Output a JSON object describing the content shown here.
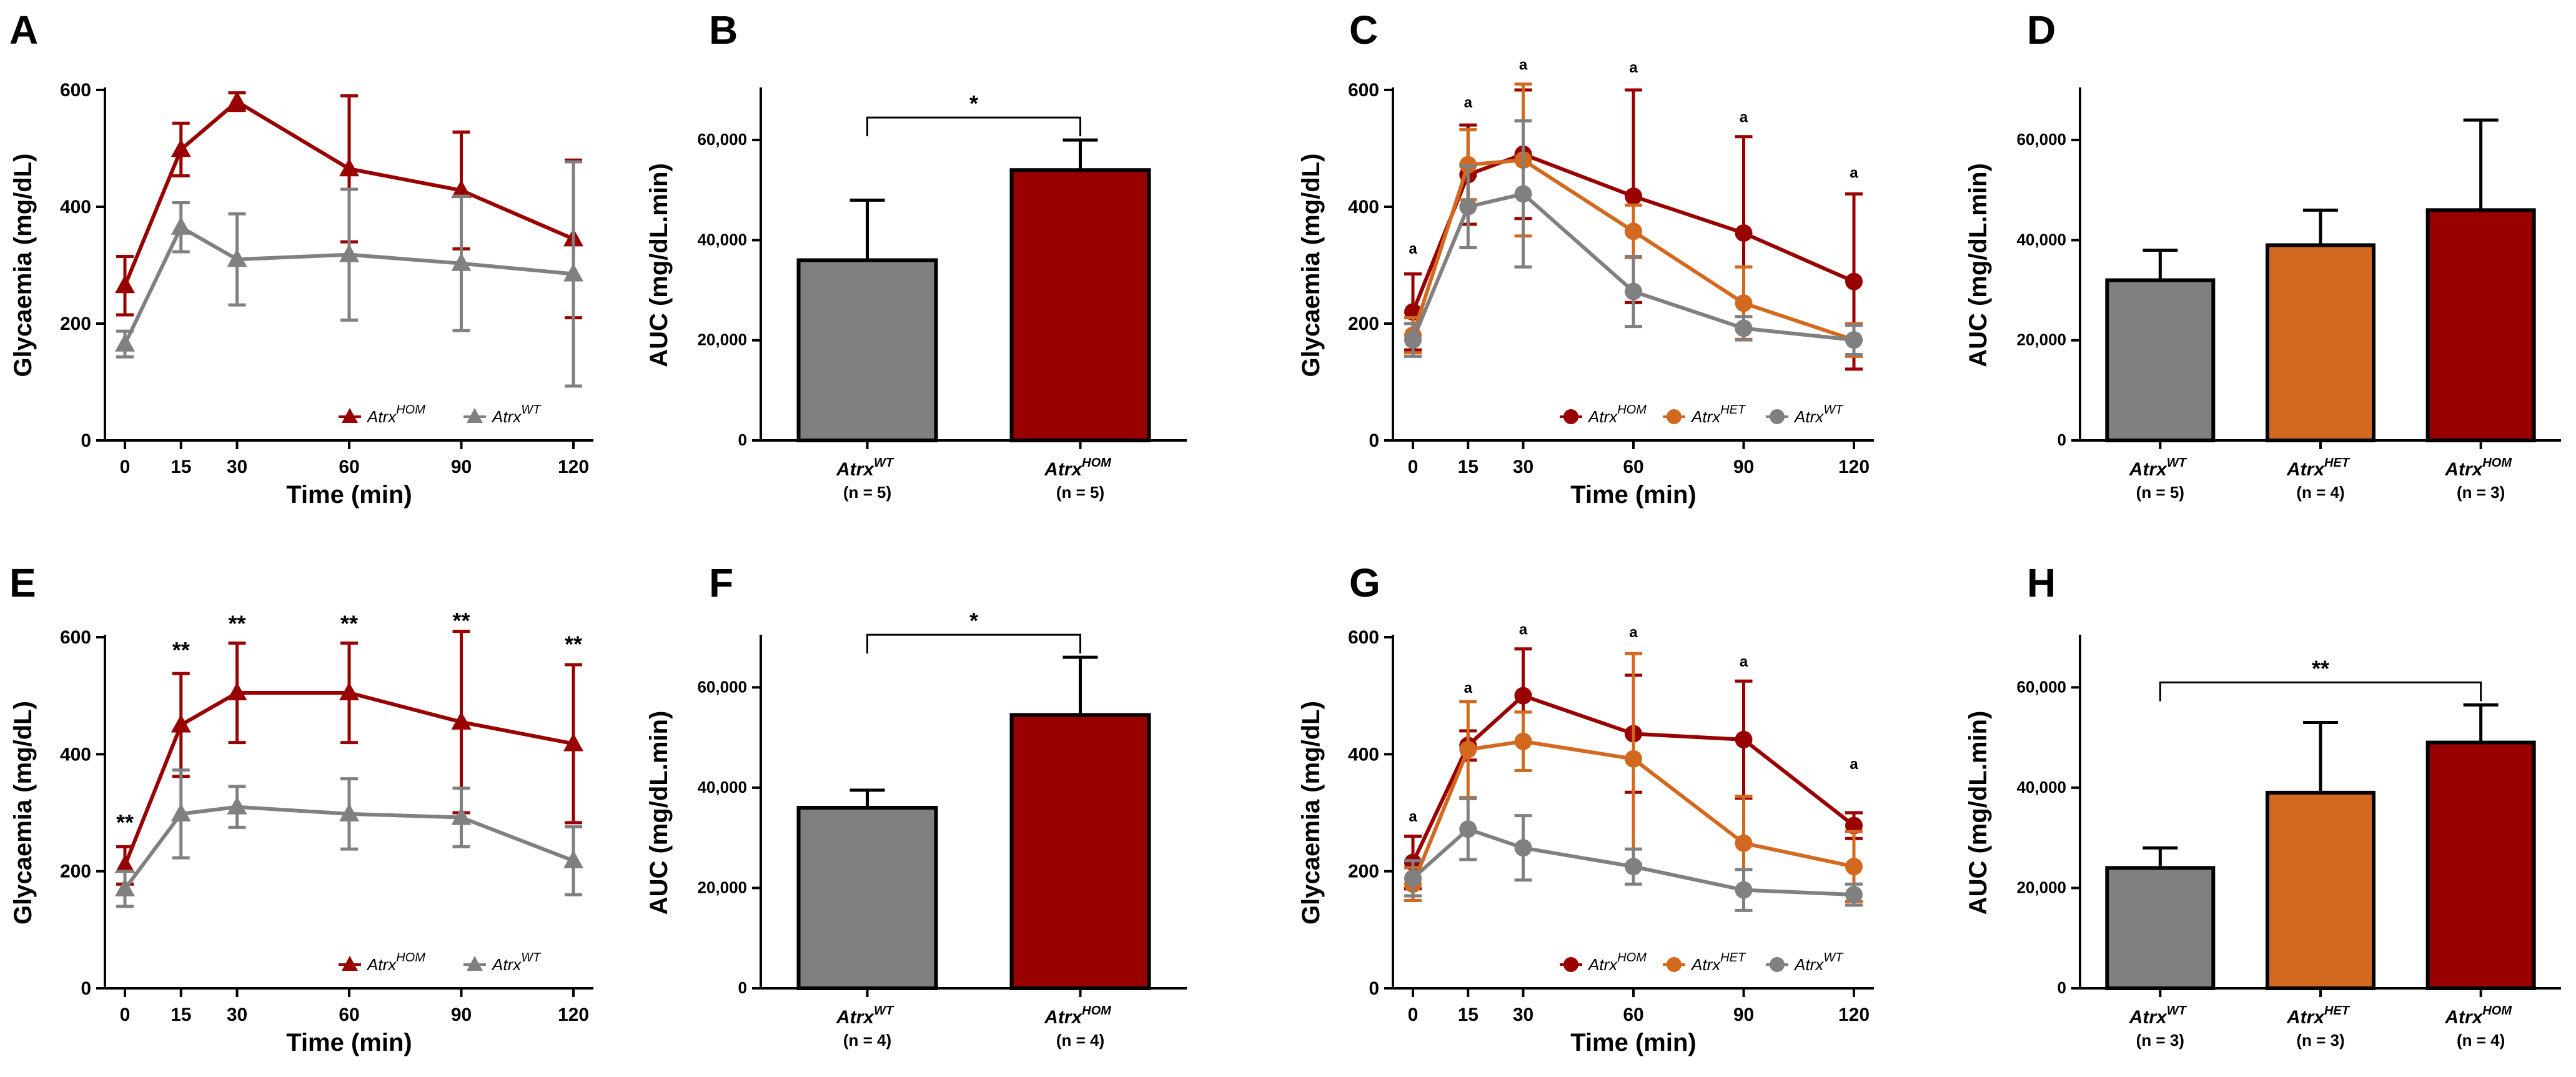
{
  "figure": {
    "colors": {
      "hom": "#990000",
      "het": "#D2691E",
      "wt": "#808080"
    }
  },
  "chart_data": [
    {
      "panel": "A",
      "type": "line",
      "xlabel": "Time (min)",
      "ylabel": "Glycaemia (mg/dL)",
      "x": [
        0,
        15,
        30,
        60,
        90,
        120
      ],
      "xticks": [
        "0",
        "15",
        "30",
        "60",
        "90",
        "120"
      ],
      "ylim": [
        0,
        600
      ],
      "yticks": [
        "0",
        "200",
        "400",
        "600"
      ],
      "series": [
        {
          "name": "Atrx",
          "sup": "HOM",
          "color": "#990000",
          "marker": "triangle",
          "values": [
            265,
            498,
            580,
            465,
            428,
            345
          ],
          "errors": [
            50,
            45,
            15,
            125,
            100,
            135
          ]
        },
        {
          "name": "Atrx",
          "sup": "WT",
          "color": "#808080",
          "marker": "triangle",
          "values": [
            165,
            365,
            310,
            318,
            303,
            285
          ],
          "errors": [
            22,
            42,
            78,
            112,
            115,
            192
          ]
        }
      ],
      "annotations": []
    },
    {
      "panel": "B",
      "type": "bar",
      "ylabel": "AUC (mg/dL.min)",
      "categories": [
        {
          "name": "Atrx",
          "sup": "WT",
          "n": "(n = 5)"
        },
        {
          "name": "Atrx",
          "sup": "HOM",
          "n": "(n = 5)"
        }
      ],
      "values": [
        36000,
        54000
      ],
      "errors": [
        12000,
        6000
      ],
      "colors": [
        "#808080",
        "#990000"
      ],
      "ylim": [
        0,
        70000
      ],
      "yticks": [
        "0",
        "20,000",
        "40,000",
        "60,000"
      ],
      "bracket": {
        "from": 0,
        "to": 1,
        "label": "*"
      }
    },
    {
      "panel": "C",
      "type": "line",
      "xlabel": "Time (min)",
      "ylabel": "Glycaemia (mg/dL)",
      "x": [
        0,
        15,
        30,
        60,
        90,
        120
      ],
      "xticks": [
        "0",
        "15",
        "30",
        "60",
        "90",
        "120"
      ],
      "ylim": [
        0,
        600
      ],
      "yticks": [
        "0",
        "200",
        "400",
        "600"
      ],
      "series": [
        {
          "name": "Atrx",
          "sup": "HOM",
          "color": "#990000",
          "marker": "circle",
          "values": [
            220,
            455,
            490,
            418,
            355,
            272
          ],
          "errors": [
            65,
            85,
            110,
            182,
            165,
            150
          ]
        },
        {
          "name": "Atrx",
          "sup": "HET",
          "color": "#D2691E",
          "marker": "circle",
          "values": [
            180,
            472,
            480,
            358,
            235,
            172
          ],
          "errors": [
            30,
            60,
            130,
            45,
            62,
            28
          ]
        },
        {
          "name": "Atrx",
          "sup": "WT",
          "color": "#808080",
          "marker": "circle",
          "values": [
            172,
            400,
            422,
            255,
            192,
            172
          ],
          "errors": [
            28,
            70,
            125,
            60,
            20,
            25
          ]
        }
      ],
      "annotations": [
        {
          "x": 0,
          "label": "a",
          "y": 320
        },
        {
          "x": 15,
          "label": "a",
          "y": 570
        },
        {
          "x": 30,
          "label": "a",
          "y": 635
        },
        {
          "x": 60,
          "label": "a",
          "y": 630
        },
        {
          "x": 90,
          "label": "a",
          "y": 545
        },
        {
          "x": 120,
          "label": "a",
          "y": 450
        }
      ]
    },
    {
      "panel": "D",
      "type": "bar",
      "ylabel": "AUC (mg/dL.min)",
      "categories": [
        {
          "name": "Atrx",
          "sup": "WT",
          "n": "(n = 5)"
        },
        {
          "name": "Atrx",
          "sup": "HET",
          "n": "(n = 4)"
        },
        {
          "name": "Atrx",
          "sup": "HOM",
          "n": "(n = 3)"
        }
      ],
      "values": [
        32000,
        39000,
        46000
      ],
      "errors": [
        6000,
        7000,
        18000
      ],
      "colors": [
        "#808080",
        "#D2691E",
        "#990000"
      ],
      "ylim": [
        0,
        70000
      ],
      "yticks": [
        "0",
        "20,000",
        "40,000",
        "60,000"
      ],
      "bracket": null
    },
    {
      "panel": "E",
      "type": "line",
      "xlabel": "Time (min)",
      "ylabel": "Glycaemia (mg/dL)",
      "x": [
        0,
        15,
        30,
        60,
        90,
        120
      ],
      "xticks": [
        "0",
        "15",
        "30",
        "60",
        "90",
        "120"
      ],
      "ylim": [
        0,
        600
      ],
      "yticks": [
        "0",
        "200",
        "400",
        "600"
      ],
      "series": [
        {
          "name": "Atrx",
          "sup": "HOM",
          "color": "#990000",
          "marker": "triangle",
          "values": [
            210,
            450,
            505,
            505,
            455,
            418
          ],
          "errors": [
            32,
            88,
            85,
            85,
            155,
            135
          ]
        },
        {
          "name": "Atrx",
          "sup": "WT",
          "color": "#808080",
          "marker": "triangle",
          "values": [
            170,
            298,
            310,
            298,
            292,
            218
          ],
          "errors": [
            30,
            75,
            35,
            60,
            50,
            58
          ]
        }
      ],
      "annotations": [
        {
          "x": 0,
          "label": "**",
          "y": 270
        },
        {
          "x": 15,
          "label": "**",
          "y": 565
        },
        {
          "x": 30,
          "label": "**",
          "y": 610
        },
        {
          "x": 60,
          "label": "**",
          "y": 610
        },
        {
          "x": 90,
          "label": "**",
          "y": 615
        },
        {
          "x": 120,
          "label": "**",
          "y": 575
        }
      ]
    },
    {
      "panel": "F",
      "type": "bar",
      "ylabel": "AUC (mg/dL.min)",
      "categories": [
        {
          "name": "Atrx",
          "sup": "WT",
          "n": "(n = 4)"
        },
        {
          "name": "Atrx",
          "sup": "HOM",
          "n": "(n = 4)"
        }
      ],
      "values": [
        36000,
        54500
      ],
      "errors": [
        3500,
        11500
      ],
      "colors": [
        "#808080",
        "#990000"
      ],
      "ylim": [
        0,
        70000
      ],
      "yticks": [
        "0",
        "20,000",
        "40,000",
        "60,000"
      ],
      "bracket": {
        "from": 0,
        "to": 1,
        "label": "*"
      }
    },
    {
      "panel": "G",
      "type": "line",
      "xlabel": "Time (min)",
      "ylabel": "Glycaemia (mg/dL)",
      "x": [
        0,
        15,
        30,
        60,
        90,
        120
      ],
      "xticks": [
        "0",
        "15",
        "30",
        "60",
        "90",
        "120"
      ],
      "ylim": [
        0,
        600
      ],
      "yticks": [
        "0",
        "200",
        "400",
        "600"
      ],
      "series": [
        {
          "name": "Atrx",
          "sup": "HOM",
          "color": "#990000",
          "marker": "circle",
          "values": [
            215,
            415,
            500,
            435,
            425,
            278
          ],
          "errors": [
            45,
            25,
            80,
            100,
            100,
            22
          ]
        },
        {
          "name": "Atrx",
          "sup": "HET",
          "color": "#D2691E",
          "marker": "circle",
          "values": [
            178,
            408,
            422,
            392,
            248,
            208
          ],
          "errors": [
            28,
            82,
            50,
            180,
            80,
            60
          ]
        },
        {
          "name": "Atrx",
          "sup": "WT",
          "color": "#808080",
          "marker": "circle",
          "values": [
            188,
            272,
            240,
            208,
            168,
            160
          ],
          "errors": [
            30,
            52,
            55,
            30,
            35,
            18
          ]
        }
      ],
      "annotations": [
        {
          "x": 0,
          "label": "a",
          "y": 285
        },
        {
          "x": 15,
          "label": "a",
          "y": 505
        },
        {
          "x": 30,
          "label": "a",
          "y": 605
        },
        {
          "x": 60,
          "label": "a",
          "y": 600
        },
        {
          "x": 90,
          "label": "a",
          "y": 550
        },
        {
          "x": 120,
          "label": "a",
          "y": 375
        }
      ]
    },
    {
      "panel": "H",
      "type": "bar",
      "ylabel": "AUC (mg/dL.min)",
      "categories": [
        {
          "name": "Atrx",
          "sup": "WT",
          "n": "(n = 3)"
        },
        {
          "name": "Atrx",
          "sup": "HET",
          "n": "(n = 3)"
        },
        {
          "name": "Atrx",
          "sup": "HOM",
          "n": "(n = 4)"
        }
      ],
      "values": [
        24000,
        39000,
        49000
      ],
      "errors": [
        4000,
        14000,
        7500
      ],
      "colors": [
        "#808080",
        "#D2691E",
        "#990000"
      ],
      "ylim": [
        0,
        70000
      ],
      "yticks": [
        "0",
        "20,000",
        "40,000",
        "60,000"
      ],
      "bracket": {
        "from": 0,
        "to": 2,
        "label": "**"
      }
    }
  ]
}
